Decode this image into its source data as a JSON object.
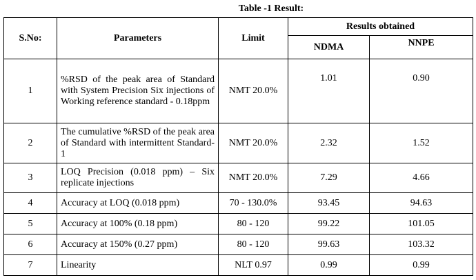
{
  "caption": "Table -1 Result:",
  "headers": {
    "sno": "S.No:",
    "parameters": "Parameters",
    "limit": "Limit",
    "results": "Results obtained",
    "ndma": "NDMA",
    "nnpe": "NNPE"
  },
  "rows": [
    {
      "sno": "1",
      "parameter": "%RSD of the peak area of Standard with System Precision Six injections of Working reference standard - 0.18ppm",
      "limit": "NMT 20.0%",
      "ndma": "1.01",
      "nnpe": "0.90"
    },
    {
      "sno": "2",
      "parameter": "The cumulative %RSD of the peak area of Standard with intermittent Standard-1",
      "limit": "NMT 20.0%",
      "ndma": "2.32",
      "nnpe": "1.52"
    },
    {
      "sno": "3",
      "parameter": "LOQ Precision (0.018 ppm) – Six replicate injections",
      "limit": "NMT 20.0%",
      "ndma": "7.29",
      "nnpe": "4.66"
    },
    {
      "sno": "4",
      "parameter": "Accuracy at LOQ (0.018 ppm)",
      "limit": "70 - 130.0%",
      "ndma": "93.45",
      "nnpe": "94.63"
    },
    {
      "sno": "5",
      "parameter": "Accuracy at 100% (0.18 ppm)",
      "limit": "80 - 120",
      "ndma": "99.22",
      "nnpe": "101.05"
    },
    {
      "sno": "6",
      "parameter": "Accuracy at 150% (0.27 ppm)",
      "limit": "80 - 120",
      "ndma": "99.63",
      "nnpe": "103.32"
    },
    {
      "sno": "7",
      "parameter": "Linearity",
      "limit": "NLT 0.97",
      "ndma": "0.99",
      "nnpe": "0.99"
    }
  ]
}
